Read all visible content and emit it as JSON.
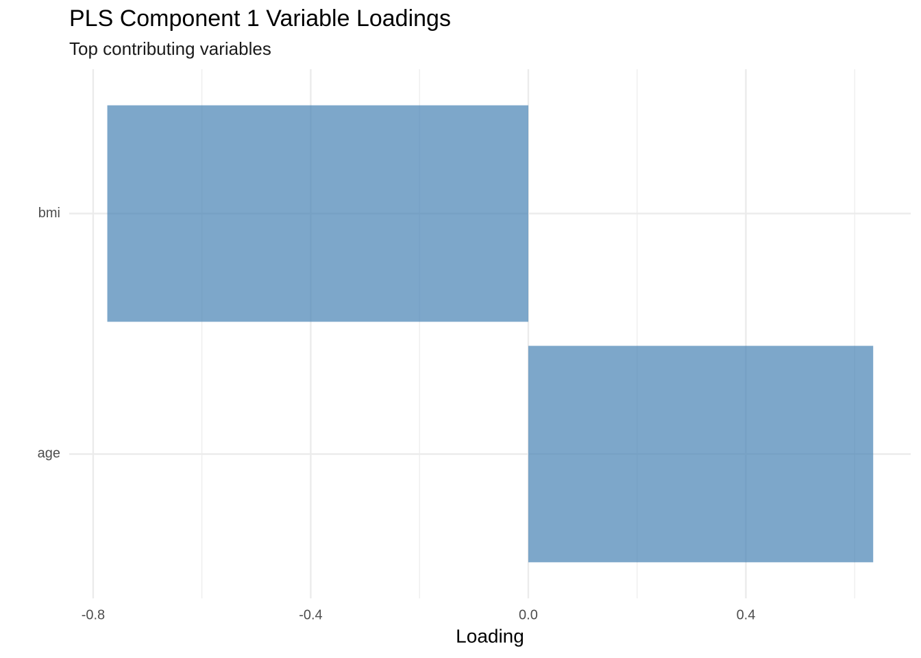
{
  "chart_data": {
    "type": "barh",
    "title": "PLS Component 1 Variable Loadings",
    "subtitle": "Top contributing variables",
    "x_label": "Loading",
    "categories": [
      "bmi",
      "age"
    ],
    "values": [
      -0.774,
      0.634
    ],
    "color": "#4682b4",
    "opacity": 0.7,
    "xlim": [
      -0.844,
      0.703
    ],
    "xticks": [
      -0.8,
      -0.4,
      {
        "value": 0,
        "label": "0.0"
      },
      0.4
    ],
    "minor_xticks": [
      -0.6,
      -0.2,
      0.2,
      0.6
    ],
    "grid": true
  }
}
